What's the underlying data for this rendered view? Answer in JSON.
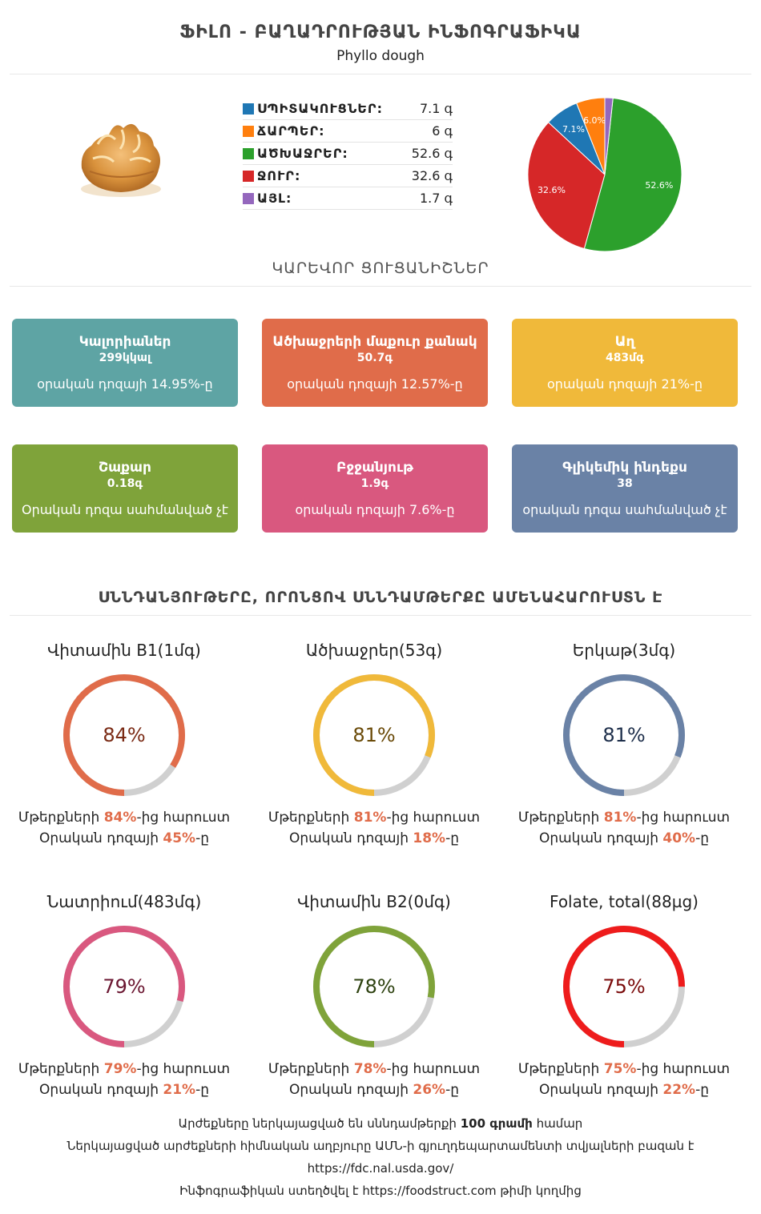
{
  "header": {
    "title": "ՖԻԼՈ - ԲԱՂԱԴՐՈՒԹՅԱՆ ԻՆՖՈԳՐԱՖԻԿԱ",
    "subtitle": "Phyllo dough"
  },
  "macros": [
    {
      "name": "ՍՊԻՏԱԿՈՒՑՆԵՐ:",
      "value": "7.1 գ",
      "color": "#1f77b4"
    },
    {
      "name": "ՃԱՐՊԵՐ:",
      "value": "6 գ",
      "color": "#ff7f0e"
    },
    {
      "name": "ԱԾԽԱՋՐԵՐ:",
      "value": "52.6 գ",
      "color": "#2ca02c"
    },
    {
      "name": "ՋՈՒՐ:",
      "value": "32.6 գ",
      "color": "#d62728"
    },
    {
      "name": "ԱՅԼ:",
      "value": "1.7 գ",
      "color": "#9467bd"
    }
  ],
  "chart_data": {
    "type": "pie",
    "slices": [
      {
        "label": "52.6%",
        "value": 52.6,
        "color": "#2ca02c"
      },
      {
        "label": "32.6%",
        "value": 32.6,
        "color": "#d62728"
      },
      {
        "label": "7.1%",
        "value": 7.1,
        "color": "#1f77b4"
      },
      {
        "label": "6.0%",
        "value": 6.0,
        "color": "#ff7f0e"
      },
      {
        "label": "",
        "value": 1.7,
        "color": "#9467bd"
      }
    ]
  },
  "key_section_title": "ԿԱՐԵՎՈՐ ՑՈՒՑԱՆԻՇՆԵՐ",
  "cards": [
    {
      "title": "Կալորիաներ",
      "value": "299կկալ",
      "note": "օրական դոզայի 14.95%-ը",
      "color": "#5ea4a4"
    },
    {
      "title": "Ածխաջրերի մաքուր քանակ",
      "value": "50.7գ",
      "note": "օրական դոզայի 12.57%-ը",
      "color": "#e06c4a"
    },
    {
      "title": "Աղ",
      "value": "483մգ",
      "note": "օրական դոզայի 21%-ը",
      "color": "#f0b93a"
    },
    {
      "title": "Շաքար",
      "value": "0.18գ",
      "note": "Օրական դոզա սահմանված չէ",
      "color": "#7fa33a"
    },
    {
      "title": "Բջջանյութ",
      "value": "1.9գ",
      "note": "օրական դոզայի 7.6%-ը",
      "color": "#d9587f"
    },
    {
      "title": "Գլիկեմիկ ինդեքս",
      "value": "38",
      "note": "օրական դոզա սահմանված չէ",
      "color": "#6a82a6"
    }
  ],
  "nutrients_section_title": "ՍՆՆԴԱՆՅՈՒԹԵՐԸ, ՈՐՈՆՑՈՎ ՍՆՆԴԱՄԹԵՐՔԸ ԱՄԵՆԱՀԱՐՈՒՍՏՆ Է",
  "rings": [
    {
      "label": "Վիտամին B1(1մգ)",
      "percent": 84,
      "percent_text": "84%",
      "daily": "45%",
      "color": "#e06c4a",
      "text_color": "#7a2a14"
    },
    {
      "label": "Ածխաջրեր(53գ)",
      "percent": 81,
      "percent_text": "81%",
      "daily": "18%",
      "color": "#f0b93a",
      "text_color": "#6a4a08"
    },
    {
      "label": "Երկաթ(3մգ)",
      "percent": 81,
      "percent_text": "81%",
      "daily": "40%",
      "color": "#6a82a6",
      "text_color": "#1d2e4a"
    },
    {
      "label": "Նատրիում(483մգ)",
      "percent": 79,
      "percent_text": "79%",
      "daily": "21%",
      "color": "#d9587f",
      "text_color": "#6a1530"
    },
    {
      "label": "Վիտամին B2(0մգ)",
      "percent": 78,
      "percent_text": "78%",
      "daily": "26%",
      "color": "#7fa33a",
      "text_color": "#2e4210"
    },
    {
      "label": "Folate, total(88µg)",
      "percent": 75,
      "percent_text": "75%",
      "daily": "22%",
      "color": "#ee1c1c",
      "text_color": "#7a0a0a"
    }
  ],
  "ring_text": {
    "line1_prefix": "Մթերքների ",
    "line1_suffix": "-ից հարուստ",
    "line2_prefix": "Օրական դոզայի ",
    "line2_suffix": "-ը"
  },
  "footer": {
    "line1_prefix": "Արժեքները ներկայացված են սննդամթերքի ",
    "line1_bold": "100 գրամի",
    "line1_suffix": " համար",
    "line2": "Ներկայացված արժեքների հիմնական աղբյուրը ԱՄՆ-ի գյուղդեպարտամենտի տվյալների բազան է",
    "line3": "https://fdc.nal.usda.gov/",
    "line4_prefix": "Ինֆոգրաֆիկան ստեղծվել է ",
    "line4_link": "https://foodstruct.com",
    "line4_suffix": " թիմի կողմից"
  }
}
